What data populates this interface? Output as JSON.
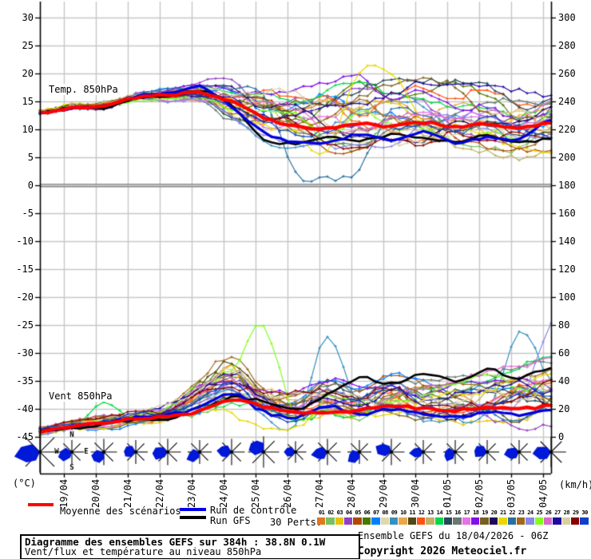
{
  "chart_data": {
    "type": "line",
    "title": "Diagramme des ensembles GEFS sur 384h : 38.8N 0.1W",
    "temp_label": "Temp. 850hPa",
    "wind_label": "Vent 850hPa",
    "y_left": {
      "unit": "(°C)",
      "ticks": [
        30,
        25,
        20,
        15,
        10,
        5,
        0,
        -5,
        -10,
        -15,
        -20,
        -25,
        -30,
        -35,
        -40,
        -45
      ]
    },
    "y_right": {
      "unit": "(km/h)",
      "ticks": [
        300,
        280,
        260,
        240,
        220,
        200,
        180,
        160,
        140,
        120,
        100,
        80,
        60,
        40,
        20,
        0
      ]
    },
    "x_ticks": [
      "19/04",
      "20/04",
      "21/04",
      "22/04",
      "23/04",
      "24/04",
      "25/04",
      "26/04",
      "27/04",
      "28/04",
      "29/04",
      "30/04",
      "01/05",
      "02/05",
      "03/05",
      "04/05"
    ],
    "run_hours": 384,
    "hours_per_day": 24,
    "series": {
      "mean": {
        "name": "Moyenne des scénarios",
        "color": "#ff0000",
        "temp": [
          13.0,
          13.9,
          14.1,
          15.7,
          16.1,
          16.5,
          15.0,
          12.2,
          10.6,
          10.2,
          11.0,
          10.5,
          11.2,
          10.4,
          11.0,
          10.2,
          11.3
        ],
        "wind": [
          4,
          7,
          10,
          13,
          15,
          18,
          27,
          22,
          17,
          18,
          19,
          22,
          20,
          19,
          21,
          20,
          22
        ]
      },
      "control": {
        "name": "Run de contrôle",
        "color": "#0000dd",
        "temp": [
          13.0,
          13.8,
          14.2,
          15.9,
          16.4,
          17.6,
          14.0,
          9.5,
          7.8,
          7.5,
          9.2,
          8.0,
          9.6,
          7.6,
          8.6,
          8.2,
          11.8
        ],
        "wind": [
          4,
          8,
          10,
          14,
          16,
          21,
          31,
          18,
          14,
          22,
          16,
          20,
          17,
          14,
          18,
          16,
          20
        ]
      },
      "gfs": {
        "name": "Run GFS",
        "color": "#000000",
        "temp": [
          13.0,
          14.0,
          13.9,
          15.5,
          16.0,
          16.9,
          14.4,
          8.2,
          7.5,
          8.6,
          8.0,
          9.0,
          8.4,
          7.8,
          9.0,
          7.6,
          8.4
        ],
        "wind": [
          4,
          6,
          9,
          12,
          13,
          19,
          28,
          25,
          20,
          30,
          42,
          38,
          46,
          40,
          48,
          42,
          50
        ]
      }
    },
    "envelope": {
      "temp_upper": [
        13.3,
        14.5,
        14.9,
        16.6,
        17.6,
        19.2,
        19.6,
        19.2,
        18.6,
        19.2,
        20.6,
        20.0,
        19.6,
        19.0,
        18.6,
        18.0,
        18.6
      ],
      "temp_lower": [
        12.7,
        13.3,
        13.3,
        14.8,
        14.4,
        13.6,
        9.0,
        6.0,
        4.2,
        2.0,
        2.6,
        4.6,
        5.0,
        4.2,
        4.6,
        4.0,
        5.2
      ],
      "wind_upper": [
        7,
        12,
        16,
        20,
        24,
        42,
        62,
        42,
        36,
        48,
        42,
        48,
        44,
        46,
        48,
        52,
        58
      ],
      "wind_lower": [
        1,
        3,
        4,
        6,
        6,
        7,
        9,
        6,
        5,
        5,
        5,
        7,
        6,
        5,
        6,
        5,
        7
      ]
    },
    "members": {
      "count": 30,
      "numbers": [
        "01",
        "02",
        "03",
        "04",
        "05",
        "06",
        "07",
        "08",
        "09",
        "10",
        "11",
        "12",
        "13",
        "14",
        "15",
        "16",
        "17",
        "18",
        "19",
        "20",
        "21",
        "22",
        "23",
        "24",
        "25",
        "26",
        "27",
        "28",
        "29",
        "30"
      ],
      "colors": [
        "#e07820",
        "#78c060",
        "#e8c400",
        "#9040c0",
        "#b04800",
        "#487800",
        "#0080ff",
        "#e0d8a8",
        "#3890c0",
        "#e8a848",
        "#504818",
        "#ff5010",
        "#c0b068",
        "#00d848",
        "#284858",
        "#687870",
        "#e870e8",
        "#8010e8",
        "#786020",
        "#200860",
        "#e8d800",
        "#2870a0",
        "#a06818",
        "#8888e8",
        "#80ff20",
        "#d868c8",
        "#2008a0",
        "#d8d0a0",
        "#880000",
        "#1040c8"
      ]
    },
    "outliers": [
      {
        "member": 25,
        "field": "wind",
        "day": 6,
        "value": 48
      },
      {
        "member": 25,
        "field": "wind",
        "day": 7,
        "value": 80
      },
      {
        "member": 9,
        "field": "wind",
        "day": 9,
        "value": 72
      },
      {
        "member": 9,
        "field": "wind",
        "day": 15,
        "value": 74
      },
      {
        "member": 24,
        "field": "wind",
        "day": 16,
        "value": 80
      },
      {
        "member": 14,
        "field": "wind",
        "day": 2,
        "value": 24
      },
      {
        "member": 22,
        "field": "temp",
        "day": 8,
        "value": 2.5
      },
      {
        "member": 22,
        "field": "temp",
        "day": 9,
        "value": 1.2
      },
      {
        "member": 22,
        "field": "temp",
        "day": 10,
        "value": 3.0
      },
      {
        "member": 21,
        "field": "temp",
        "day": 10,
        "value": 20.5
      },
      {
        "member": 21,
        "field": "temp",
        "day": 11,
        "value": 20.0
      }
    ],
    "wind_barbs": {
      "compass": [
        "N",
        "E",
        "S",
        "W"
      ],
      "dirs": [
        170,
        160,
        140,
        185,
        175,
        150,
        185,
        215,
        180,
        170,
        140,
        200,
        175,
        160,
        185,
        170,
        175
      ],
      "scales": [
        1.7,
        1.0,
        1.1,
        1.0,
        1.1,
        1.0,
        1.1,
        1.3,
        0.9,
        1.1,
        1.0,
        1.1,
        1.0,
        1.0,
        1.0,
        1.0,
        1.25
      ]
    }
  },
  "legend": {
    "mean": "Moyenne des scénarios",
    "control": "Run de contrôle",
    "gfs": "Run GFS",
    "perts": "30 Perts."
  },
  "footer": {
    "title": "Diagramme des ensembles GEFS sur 384h : 38.8N 0.1W",
    "subtitle": "Vent/flux et température au niveau 850hPa",
    "run_info": "Ensemble GEFS du 18/04/2026 - 06Z",
    "copyright": "Copyright 2026 Meteociel.fr"
  }
}
